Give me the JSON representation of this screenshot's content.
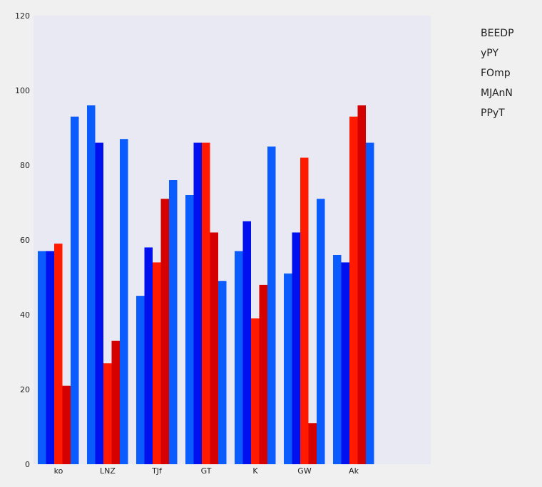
{
  "chart_data": {
    "type": "bar",
    "categories": [
      "ko",
      "LNZ",
      "TJf",
      "GT",
      "K",
      "GW",
      "Ak"
    ],
    "series": [
      {
        "name": "BEEDP",
        "color": "#0a5cff",
        "values": [
          57,
          96,
          45,
          72,
          57,
          51,
          56
        ]
      },
      {
        "name": "yPY",
        "color": "#0010ee",
        "values": [
          57,
          86,
          58,
          86,
          65,
          62,
          54
        ]
      },
      {
        "name": "FOmp",
        "color": "#ff1a00",
        "values": [
          59,
          27,
          54,
          86,
          39,
          82,
          93
        ]
      },
      {
        "name": "MJAnN",
        "color": "#d50000",
        "values": [
          21,
          33,
          71,
          62,
          48,
          11,
          96
        ]
      },
      {
        "name": "PPyT",
        "color": "#0a5cff",
        "values": [
          93,
          87,
          76,
          49,
          85,
          71,
          86
        ]
      }
    ],
    "ylim": [
      0,
      120
    ],
    "yticks": [
      "0",
      "20",
      "40",
      "60",
      "80",
      "100",
      "120"
    ],
    "grid": false,
    "legend_position": "right",
    "plot_background": "#e8e9f2"
  }
}
